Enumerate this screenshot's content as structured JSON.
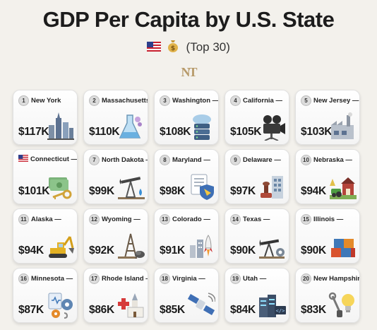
{
  "title": "GDP Per Capita by U.S. State",
  "subtitle": "(Top 30)",
  "logo_text": "NT",
  "cards": [
    {
      "rank": "1",
      "state": "New York",
      "value": "$117K",
      "icon": "skyline-icon"
    },
    {
      "rank": "2",
      "state": "Massachusetts",
      "value": "$110K",
      "icon": "flask-icon"
    },
    {
      "rank": "3",
      "state": "Washington —",
      "value": "$108K",
      "icon": "cloud-server-icon"
    },
    {
      "rank": "4",
      "state": "California —",
      "value": "$105K",
      "icon": "film-camera-icon"
    },
    {
      "rank": "5",
      "state": "New Jersey —",
      "value": "$103K",
      "icon": "factory-icon"
    },
    {
      "rank": "",
      "flag": true,
      "state": "Connecticut —",
      "value": "$101K",
      "icon": "money-key-icon"
    },
    {
      "rank": "7",
      "state": "North Dakota —",
      "value": "$99K",
      "icon": "oil-pump-icon"
    },
    {
      "rank": "8",
      "state": "Maryland —",
      "value": "$98K",
      "icon": "document-shield-icon"
    },
    {
      "rank": "9",
      "state": "Delaware —",
      "value": "$97K",
      "icon": "stamp-building-icon"
    },
    {
      "rank": "10",
      "state": "Nebraska —",
      "value": "$94K",
      "icon": "farm-icon"
    },
    {
      "rank": "11",
      "state": "Alaska —",
      "value": "$94K",
      "icon": "excavator-icon"
    },
    {
      "rank": "12",
      "state": "Wyoming —",
      "value": "$92K",
      "icon": "oil-derrick-icon"
    },
    {
      "rank": "13",
      "state": "Colorado —",
      "value": "$91K",
      "icon": "rocket-city-icon"
    },
    {
      "rank": "14",
      "state": "Texas —",
      "value": "$90K",
      "icon": "pumpjack-gear-icon"
    },
    {
      "rank": "15",
      "state": "Illinois —",
      "value": "$90K",
      "icon": "containers-icon"
    },
    {
      "rank": "16",
      "state": "Minnesota —",
      "value": "$87K",
      "icon": "medical-gear-icon"
    },
    {
      "rank": "17",
      "state": "Rhode Island —",
      "value": "$86K",
      "icon": "health-church-icon"
    },
    {
      "rank": "18",
      "state": "Virginia —",
      "value": "$85K",
      "icon": "satellite-icon"
    },
    {
      "rank": "19",
      "state": "Utah —",
      "value": "$84K",
      "icon": "data-center-icon"
    },
    {
      "rank": "20",
      "state": "New Hampshire",
      "value": "$83K",
      "icon": "lightbulb-tools-icon"
    }
  ]
}
